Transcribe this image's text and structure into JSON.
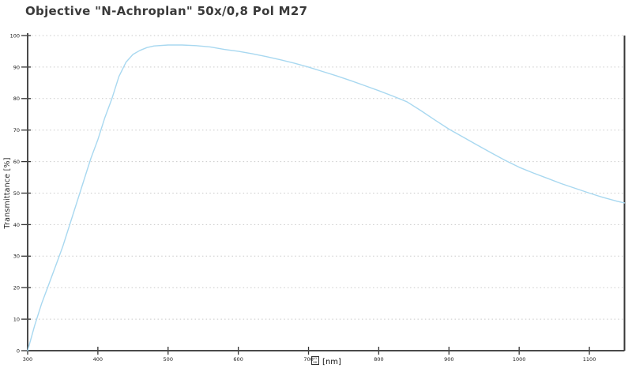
{
  "title": "Objective \"N-Achroplan\" 50x/0,8 Pol M27",
  "colors": {
    "background": "#ffffff",
    "curve": "#a8d8f0",
    "axis": "#4a4a4a",
    "tick": "#333333",
    "grid": "#c9c9c9",
    "text": "#1a1a1a",
    "title_text": "#3a3a3a",
    "right_border": "#383838"
  },
  "chart_data": {
    "type": "line",
    "title": "Objective \"N-Achroplan\" 50x/0,8 Pol M27",
    "ylabel": "Transmittance [%]",
    "xlabel_unit": "[nm]",
    "xlabel_missing_glyph_hex": [
      "03",
      "BB"
    ],
    "xlim": [
      300,
      1150
    ],
    "ylim": [
      0,
      100
    ],
    "x_ticks": [
      300,
      400,
      500,
      600,
      700,
      800,
      900,
      1000,
      1100
    ],
    "y_ticks": [
      0,
      10,
      20,
      30,
      40,
      50,
      60,
      70,
      80,
      90,
      100
    ],
    "grid": "horizontal-dashed",
    "legend": "none",
    "series": [
      {
        "name": "transmittance",
        "color": "#a8d8f0",
        "x": [
          300,
          310,
          320,
          330,
          340,
          350,
          360,
          370,
          380,
          390,
          400,
          410,
          420,
          430,
          440,
          450,
          460,
          470,
          480,
          500,
          520,
          540,
          560,
          580,
          600,
          620,
          640,
          660,
          680,
          700,
          720,
          740,
          760,
          780,
          800,
          820,
          840,
          860,
          880,
          900,
          920,
          940,
          960,
          980,
          1000,
          1020,
          1040,
          1060,
          1080,
          1100,
          1120,
          1140,
          1150
        ],
        "y": [
          0,
          8,
          15,
          21,
          27,
          33,
          40,
          47,
          54,
          61,
          67,
          74,
          80,
          87,
          91.5,
          94,
          95.3,
          96.2,
          96.7,
          97,
          97,
          96.8,
          96.4,
          95.6,
          95,
          94.2,
          93.3,
          92.3,
          91.2,
          90,
          88.6,
          87.2,
          85.7,
          84.1,
          82.5,
          80.8,
          79,
          76.2,
          73.2,
          70.3,
          67.8,
          65.3,
          62.8,
          60.4,
          58.2,
          56.4,
          54.7,
          53,
          51.5,
          50,
          48.6,
          47.4,
          46.9
        ]
      }
    ]
  }
}
